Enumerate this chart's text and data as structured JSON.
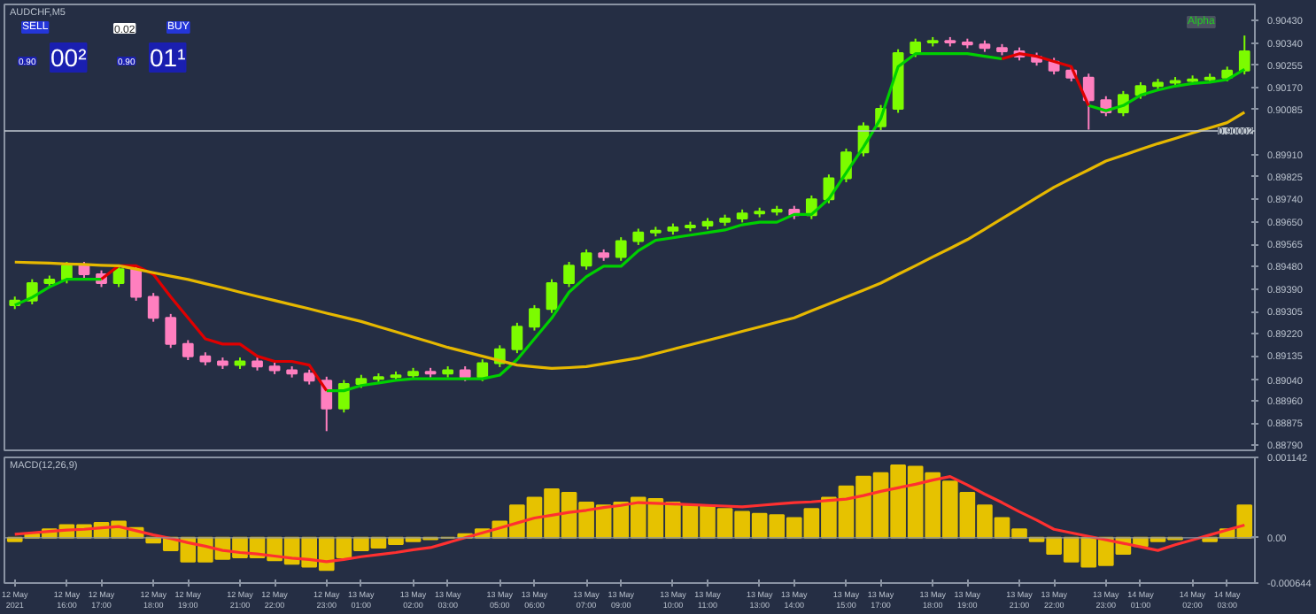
{
  "chart_data": [
    {
      "type": "candlestick",
      "title": "AUDCHF,M5",
      "categories": [
        null,
        null,
        null,
        null,
        null,
        null,
        null,
        null,
        null,
        null,
        null,
        null,
        null,
        null,
        null,
        null,
        null,
        null,
        null,
        null,
        null,
        null,
        null,
        null,
        null,
        null,
        null,
        null,
        null,
        null,
        null,
        null,
        null,
        null,
        null,
        null,
        null,
        null,
        null,
        null,
        null,
        null,
        null,
        null,
        null,
        null,
        null,
        null,
        null,
        null,
        null,
        null,
        null,
        null,
        null,
        null,
        null,
        null,
        null,
        null,
        null,
        null,
        null,
        null,
        null,
        null,
        null,
        null,
        null,
        null,
        null,
        null
      ],
      "ohlc": [
        [
          0.8933,
          0.89363,
          0.89315,
          0.89348
        ],
        [
          0.89348,
          0.8943,
          0.89333,
          0.89415
        ],
        [
          0.89415,
          0.89444,
          0.894,
          0.89429
        ],
        [
          0.89429,
          0.89497,
          0.89414,
          0.89482
        ],
        [
          0.89482,
          0.89497,
          0.89434,
          0.89449
        ],
        [
          0.89449,
          0.89464,
          0.894,
          0.89415
        ],
        [
          0.89415,
          0.89484,
          0.894,
          0.89469
        ],
        [
          0.89469,
          0.89484,
          0.89347,
          0.89362
        ],
        [
          0.89362,
          0.89377,
          0.89266,
          0.89281
        ],
        [
          0.89281,
          0.89296,
          0.89165,
          0.8918
        ],
        [
          0.8918,
          0.89195,
          0.89118,
          0.89133
        ],
        [
          0.89133,
          0.89148,
          0.89098,
          0.89113
        ],
        [
          0.89113,
          0.89128,
          0.89084,
          0.89099
        ],
        [
          0.89099,
          0.89128,
          0.89084,
          0.89113
        ],
        [
          0.89113,
          0.89128,
          0.89078,
          0.89093
        ],
        [
          0.89093,
          0.89108,
          0.89064,
          0.89079
        ],
        [
          0.89079,
          0.89094,
          0.89051,
          0.89066
        ],
        [
          0.89066,
          0.89081,
          0.89024,
          0.89039
        ],
        [
          0.89039,
          0.89054,
          0.88844,
          0.88931
        ],
        [
          0.88931,
          0.89041,
          0.88916,
          0.89026
        ],
        [
          0.89026,
          0.89061,
          0.89011,
          0.89046
        ],
        [
          0.89046,
          0.89067,
          0.89031,
          0.89052
        ],
        [
          0.89052,
          0.89074,
          0.89037,
          0.89059
        ],
        [
          0.89059,
          0.89088,
          0.89044,
          0.89073
        ],
        [
          0.89073,
          0.89088,
          0.89051,
          0.89066
        ],
        [
          0.89066,
          0.89094,
          0.89051,
          0.89079
        ],
        [
          0.89079,
          0.89094,
          0.89037,
          0.89052
        ],
        [
          0.89052,
          0.89121,
          0.89037,
          0.89106
        ],
        [
          0.89106,
          0.89175,
          0.89091,
          0.8916
        ],
        [
          0.8916,
          0.89262,
          0.89145,
          0.89247
        ],
        [
          0.89247,
          0.8933,
          0.89232,
          0.89315
        ],
        [
          0.89315,
          0.8943,
          0.893,
          0.89415
        ],
        [
          0.89415,
          0.89497,
          0.894,
          0.89482
        ],
        [
          0.89482,
          0.89545,
          0.89467,
          0.8953
        ],
        [
          0.8953,
          0.89545,
          0.89501,
          0.89516
        ],
        [
          0.89516,
          0.89592,
          0.89501,
          0.89577
        ],
        [
          0.89577,
          0.89625,
          0.89562,
          0.8961
        ],
        [
          0.8961,
          0.89632,
          0.89595,
          0.89617
        ],
        [
          0.89617,
          0.89645,
          0.89602,
          0.8963
        ],
        [
          0.8963,
          0.89652,
          0.89615,
          0.89637
        ],
        [
          0.89637,
          0.89666,
          0.89622,
          0.89651
        ],
        [
          0.89651,
          0.89679,
          0.89636,
          0.89664
        ],
        [
          0.89664,
          0.89699,
          0.89649,
          0.89684
        ],
        [
          0.89684,
          0.89706,
          0.89669,
          0.89691
        ],
        [
          0.89691,
          0.89713,
          0.89676,
          0.89698
        ],
        [
          0.89698,
          0.89713,
          0.89662,
          0.89677
        ],
        [
          0.89677,
          0.89753,
          0.89662,
          0.89738
        ],
        [
          0.89738,
          0.89834,
          0.89723,
          0.89819
        ],
        [
          0.89819,
          0.89934,
          0.89804,
          0.89919
        ],
        [
          0.89919,
          0.90035,
          0.89904,
          0.9002
        ],
        [
          0.9002,
          0.90102,
          0.90005,
          0.90087
        ],
        [
          0.90087,
          0.90317,
          0.90072,
          0.90302
        ],
        [
          0.90302,
          0.90358,
          0.90287,
          0.90343
        ],
        [
          0.90343,
          0.90364,
          0.90328,
          0.90349
        ],
        [
          0.90349,
          0.90364,
          0.90328,
          0.90343
        ],
        [
          0.90343,
          0.90358,
          0.90321,
          0.90336
        ],
        [
          0.90336,
          0.90351,
          0.90307,
          0.90322
        ],
        [
          0.90322,
          0.90337,
          0.90294,
          0.90309
        ],
        [
          0.90309,
          0.90324,
          0.90274,
          0.90289
        ],
        [
          0.90289,
          0.90304,
          0.90254,
          0.90269
        ],
        [
          0.90269,
          0.90284,
          0.9022,
          0.90235
        ],
        [
          0.90235,
          0.9025,
          0.90193,
          0.90208
        ],
        [
          0.90208,
          0.90223,
          0.90007,
          0.90121
        ],
        [
          0.90121,
          0.90136,
          0.90059,
          0.90074
        ],
        [
          0.90074,
          0.90156,
          0.90059,
          0.90141
        ],
        [
          0.90141,
          0.9019,
          0.90126,
          0.90175
        ],
        [
          0.90175,
          0.90203,
          0.9016,
          0.90188
        ],
        [
          0.90188,
          0.9021,
          0.90173,
          0.90195
        ],
        [
          0.90195,
          0.90216,
          0.9018,
          0.90201
        ],
        [
          0.90201,
          0.90223,
          0.90186,
          0.90208
        ],
        [
          0.90208,
          0.9025,
          0.90193,
          0.90235
        ],
        [
          0.90235,
          0.9037,
          0.9022,
          0.90309
        ]
      ],
      "colors": [
        "#7cfc00",
        "#7cfc00",
        "#7cfc00",
        "#7cfc00",
        "#ff7fbf",
        "#ff7fbf",
        "#7cfc00",
        "#ff7fbf",
        "#ff7fbf",
        "#ff7fbf",
        "#ff7fbf",
        "#ff7fbf",
        "#ff7fbf",
        "#7cfc00",
        "#ff7fbf",
        "#ff7fbf",
        "#ff7fbf",
        "#ff7fbf",
        "#ff7fbf",
        "#7cfc00",
        "#7cfc00",
        "#7cfc00",
        "#7cfc00",
        "#7cfc00",
        "#ff7fbf",
        "#7cfc00",
        "#ff7fbf",
        "#7cfc00",
        "#7cfc00",
        "#7cfc00",
        "#7cfc00",
        "#7cfc00",
        "#7cfc00",
        "#7cfc00",
        "#ff7fbf",
        "#7cfc00",
        "#7cfc00",
        "#7cfc00",
        "#7cfc00",
        "#7cfc00",
        "#7cfc00",
        "#7cfc00",
        "#7cfc00",
        "#7cfc00",
        "#7cfc00",
        "#ff7fbf",
        "#7cfc00",
        "#7cfc00",
        "#7cfc00",
        "#7cfc00",
        "#7cfc00",
        "#7cfc00",
        "#7cfc00",
        "#7cfc00",
        "#ff7fbf",
        "#ff7fbf",
        "#ff7fbf",
        "#ff7fbf",
        "#ff7fbf",
        "#ff7fbf",
        "#ff7fbf",
        "#ff7fbf",
        "#ff7fbf",
        "#ff7fbf",
        "#7cfc00",
        "#7cfc00",
        "#7cfc00",
        "#7cfc00",
        "#7cfc00",
        "#7cfc00",
        "#7cfc00",
        "#7cfc00"
      ],
      "series": [
        {
          "type": "line",
          "color": "#00d000",
          "values": [
            0.8933,
            0.8936,
            0.894,
            0.8943,
            0.8943,
            0.8943,
            null,
            null,
            null,
            null,
            null,
            null,
            null,
            null,
            null,
            null,
            null,
            null,
            0.89,
            0.89,
            0.8902,
            0.8903,
            0.8904,
            0.89046,
            0.89046,
            0.89046,
            0.89046,
            0.89046,
            0.8906,
            0.8912,
            0.892,
            0.8928,
            0.8938,
            0.8944,
            0.8948,
            0.8948,
            0.8954,
            0.8958,
            0.8959,
            0.896,
            0.8961,
            0.8962,
            0.8964,
            0.8965,
            0.8965,
            0.8968,
            0.8968,
            0.8974,
            0.8984,
            0.8994,
            0.9005,
            0.9025,
            0.903,
            0.903,
            0.903,
            0.903,
            0.9029,
            0.9028,
            null,
            null,
            null,
            null,
            0.901,
            0.9008,
            0.901,
            0.9014,
            0.9016,
            0.90175,
            0.90185,
            0.9019,
            0.902,
            0.9024
          ]
        },
        {
          "type": "line",
          "color": "#e00000",
          "values": [
            null,
            null,
            null,
            null,
            null,
            0.8943,
            0.89482,
            0.89482,
            0.89449,
            0.89362,
            0.89281,
            0.892,
            0.8918,
            0.8918,
            0.89133,
            0.89113,
            0.89113,
            0.89099,
            0.89,
            null,
            null,
            null,
            null,
            null,
            null,
            null,
            null,
            null,
            null,
            null,
            null,
            null,
            null,
            null,
            null,
            null,
            null,
            null,
            null,
            null,
            null,
            null,
            null,
            null,
            null,
            null,
            null,
            null,
            null,
            null,
            null,
            null,
            null,
            null,
            null,
            null,
            null,
            0.9028,
            0.903,
            0.9029,
            0.9027,
            0.9025,
            0.901,
            null,
            null,
            null,
            null,
            null,
            null,
            null,
            null,
            null
          ]
        },
        {
          "type": "line",
          "color": "#e6b800",
          "values": [
            0.89496,
            0.89494,
            0.89492,
            0.89489,
            0.89487,
            0.89484,
            0.89482,
            0.89469,
            0.89455,
            0.89442,
            0.89429,
            0.89413,
            0.89397,
            0.8938,
            0.89364,
            0.89348,
            0.89332,
            0.89316,
            0.89299,
            0.89283,
            0.89267,
            0.89247,
            0.89227,
            0.89207,
            0.89187,
            0.89167,
            0.8915,
            0.89133,
            0.89116,
            0.89099,
            0.89092,
            0.89086,
            0.89089,
            0.89093,
            0.89104,
            0.89115,
            0.89126,
            0.89143,
            0.8916,
            0.89177,
            0.89194,
            0.89211,
            0.89229,
            0.89246,
            0.89264,
            0.89281,
            0.89308,
            0.89335,
            0.89361,
            0.89388,
            0.89415,
            0.89449,
            0.89482,
            0.89516,
            0.89549,
            0.89583,
            0.89623,
            0.89664,
            0.89704,
            0.89745,
            0.89785,
            0.89819,
            0.89852,
            0.89886,
            0.89908,
            0.89931,
            0.89953,
            0.89973,
            0.89994,
            0.90014,
            0.90034,
            0.90074
          ]
        }
      ],
      "ylim": [
        0.8877,
        0.9049
      ],
      "yticks": [
        {
          "value": 0.9043,
          "label": "0.90430"
        },
        {
          "value": 0.9034,
          "label": "0.90340"
        },
        {
          "value": 0.90255,
          "label": "0.90255"
        },
        {
          "value": 0.9017,
          "label": "0.90170"
        },
        {
          "value": 0.90085,
          "label": "0.90085"
        },
        {
          "value": 0.8991,
          "label": "0.89910"
        },
        {
          "value": 0.89825,
          "label": "0.89825"
        },
        {
          "value": 0.8974,
          "label": "0.89740"
        },
        {
          "value": 0.8965,
          "label": "0.89650"
        },
        {
          "value": 0.89565,
          "label": "0.89565"
        },
        {
          "value": 0.8948,
          "label": "0.89480"
        },
        {
          "value": 0.8939,
          "label": "0.89390"
        },
        {
          "value": 0.89305,
          "label": "0.89305"
        },
        {
          "value": 0.8922,
          "label": "0.89220"
        },
        {
          "value": 0.89135,
          "label": "0.89135"
        },
        {
          "value": 0.8904,
          "label": "0.89040"
        },
        {
          "value": 0.8896,
          "label": "0.88960"
        },
        {
          "value": 0.88875,
          "label": "0.88875"
        },
        {
          "value": 0.8879,
          "label": "0.88790"
        }
      ],
      "tick_labels": "y",
      "ref_lines": [
        {
          "axis": "y",
          "value": 0.90002,
          "label": "0.90002",
          "color": "#c0c8d0"
        }
      ],
      "annotations": [
        "SELL",
        "0.02",
        "BUY",
        "0.90",
        "00²",
        "0.90",
        "01¹",
        "Alpha"
      ]
    },
    {
      "type": "bar",
      "title": "MACD(12,26,9)",
      "categories": [
        "12 May 2021",
        null,
        null,
        "12 May 16:00",
        null,
        "12 May 17:00",
        null,
        null,
        "12 May 18:00",
        null,
        "12 May 19:00",
        null,
        null,
        "12 May 21:00",
        null,
        "12 May 22:00",
        null,
        null,
        "12 May 23:00",
        null,
        "13 May 01:00",
        null,
        null,
        "13 May 02:00",
        null,
        "13 May 03:00",
        null,
        null,
        "13 May 05:00",
        null,
        "13 May 06:00",
        null,
        null,
        "13 May 07:00",
        null,
        "13 May 09:00",
        null,
        null,
        "13 May 10:00",
        null,
        "13 May 11:00",
        null,
        null,
        "13 May 13:00",
        null,
        "13 May 14:00",
        null,
        null,
        "13 May 15:00",
        null,
        "13 May 17:00",
        null,
        null,
        "13 May 18:00",
        null,
        "13 May 19:00",
        null,
        null,
        "13 May 21:00",
        null,
        "13 May 22:00",
        null,
        null,
        "13 May 23:00",
        null,
        "14 May 01:00",
        null,
        null,
        "14 May 02:00",
        null,
        "14 May 03:00",
        null
      ],
      "series": [
        {
          "color": "#e6c200",
          "values": [
            -5e-05,
            5e-05,
            0.00012,
            0.00018,
            0.00018,
            0.00021,
            0.00023,
            0.00014,
            -7e-05,
            -0.00018,
            -0.00034,
            -0.00034,
            -0.0003,
            -0.00028,
            -0.00028,
            -0.00032,
            -0.00037,
            -0.00041,
            -0.00046,
            -0.00028,
            -0.00018,
            -0.00014,
            -9e-05,
            -5e-05,
            -2e-05,
            0,
            5e-05,
            0.00012,
            0.00023,
            0.00046,
            0.00057,
            0.00069,
            0.00064,
            0.0005,
            0.00046,
            0.0005,
            0.00057,
            0.00055,
            0.0005,
            0.00046,
            0.00046,
            0.00041,
            0.00037,
            0.00034,
            0.00032,
            0.00028,
            0.00041,
            0.00057,
            0.00073,
            0.00087,
            0.00092,
            0.00103,
            0.00101,
            0.00092,
            0.0008,
            0.00064,
            0.00046,
            0.00028,
            0.00012,
            -5e-05,
            -0.00023,
            -0.00034,
            -0.00041,
            -0.00039,
            -0.00023,
            -0.00012,
            -5e-05,
            -2e-05,
            null,
            -5e-05,
            0.00012,
            0.00046
          ]
        },
        {
          "type": "line",
          "color": "#ff3030",
          "values": [
            5e-05,
            7e-05,
            9e-05,
            0.00011,
            0.00012,
            0.00014,
            0.00016,
            0.0001,
            4e-05,
            -1e-05,
            -7e-05,
            -0.00012,
            -0.00018,
            -0.00021,
            -0.00023,
            -0.00026,
            -0.00029,
            -0.00031,
            -0.00034,
            -0.00031,
            -0.00027,
            -0.00024,
            -0.00021,
            -0.00017,
            -0.00014,
            -7e-05,
            0,
            7e-05,
            0.00014,
            0.00021,
            0.00028,
            0.00032,
            0.00036,
            0.00039,
            0.00043,
            0.00046,
            0.0005,
            0.00049,
            0.00048,
            0.00047,
            0.00046,
            0.00045,
            0.00044,
            0.00046,
            0.00048,
            0.0005,
            0.00051,
            0.00053,
            0.00055,
            0.0006,
            0.00066,
            0.00071,
            0.00076,
            0.00082,
            0.00087,
            0.00075,
            0.00062,
            0.0005,
            0.00037,
            0.00025,
            0.00012,
            7e-05,
            2e-05,
            -3e-05,
            -8e-05,
            -0.00013,
            -0.00018,
            -0.0001,
            -3e-05,
            4e-05,
            0.00011,
            0.00018
          ]
        }
      ],
      "ylim": [
        -0.000644,
        0.001142
      ],
      "yticks": [
        0.001142,
        {
          "value": 0,
          "label": "0.00"
        },
        -0.000644
      ]
    }
  ]
}
